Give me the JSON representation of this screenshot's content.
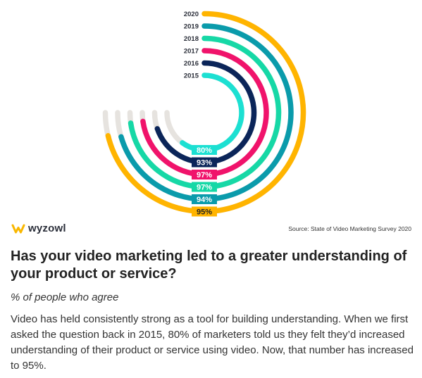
{
  "chart_data": {
    "type": "radial-bar",
    "series": [
      {
        "name": "2015",
        "value": 80,
        "label": "80%",
        "color": "#1ce0d2"
      },
      {
        "name": "2016",
        "value": 93,
        "label": "93%",
        "color": "#0b2559"
      },
      {
        "name": "2017",
        "value": 97,
        "label": "97%",
        "color": "#f0136b"
      },
      {
        "name": "2018",
        "value": 97,
        "label": "97%",
        "color": "#16d8a6"
      },
      {
        "name": "2019",
        "value": 94,
        "label": "94%",
        "color": "#0a9bab"
      },
      {
        "name": "2020",
        "value": 95,
        "label": "95%",
        "color": "#ffb400"
      }
    ],
    "max": 100,
    "track_color": "#e6e3df"
  },
  "brand": {
    "name": "wyzowl",
    "logo_color": "#f9b700"
  },
  "source": "Source: State of Video Marketing Survey 2020",
  "headline": "Has your video marketing led to a greater understanding of your product or service?",
  "subtitle": "% of people who agree",
  "description": "Video has held consistently strong as a tool for building understanding. When we first asked the question back in 2015, 80% of marketers told us they felt they’d increased understanding of their product or service using video. Now, that number has increased to 95%."
}
